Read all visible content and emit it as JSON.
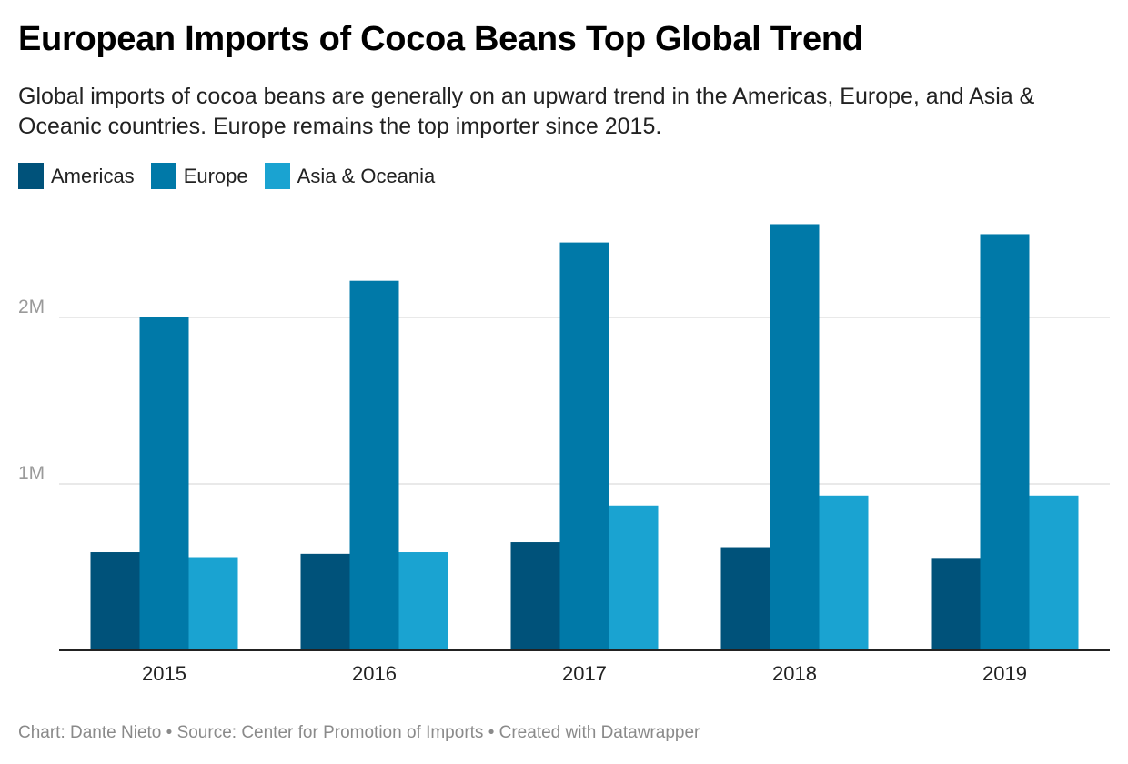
{
  "header": {
    "title": "European Imports of Cocoa Beans Top Global Trend",
    "subtitle": "Global imports of cocoa beans are generally on an upward trend in the Americas, Europe, and Asia & Oceanic countries. Europe remains the top importer since 2015."
  },
  "footer": {
    "credit": "Chart: Dante Nieto • Source: Center for Promotion of Imports • Created with Datawrapper"
  },
  "chart_data": {
    "type": "bar",
    "categories": [
      "2015",
      "2016",
      "2017",
      "2018",
      "2019"
    ],
    "series": [
      {
        "name": "Americas",
        "color": "#00527a",
        "values": [
          590000,
          580000,
          650000,
          620000,
          550000
        ]
      },
      {
        "name": "Europe",
        "color": "#0079a8",
        "values": [
          2000000,
          2220000,
          2450000,
          2560000,
          2500000
        ]
      },
      {
        "name": "Asia & Oceania",
        "color": "#1aa3d1",
        "values": [
          560000,
          590000,
          870000,
          930000,
          930000
        ]
      }
    ],
    "yticks": [
      {
        "value": 1000000,
        "label": "1M"
      },
      {
        "value": 2000000,
        "label": "2M"
      }
    ],
    "ylim": [
      0,
      2650000
    ],
    "grid": true,
    "legend": "top-left"
  }
}
